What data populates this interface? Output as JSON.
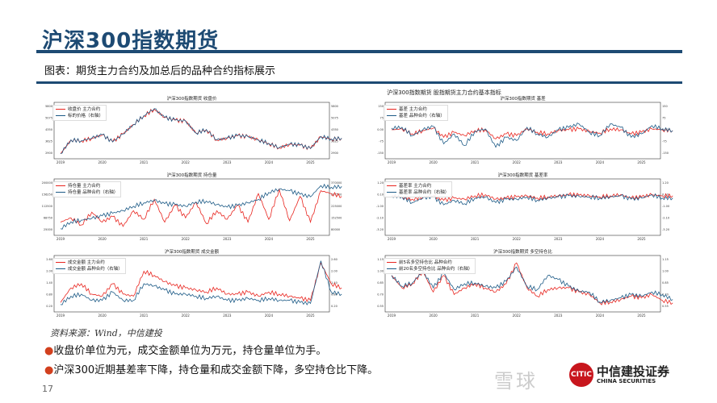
{
  "header": {
    "title": "沪深300指数期货",
    "caption": "图表：期货主力合约及加总后的品种合约指标展示"
  },
  "panel_title": "沪深300指数期货 股指期货主力合约基本指标",
  "footer": {
    "source": "资料来源：Wind，中信建投",
    "bullets": [
      "收盘价单位为元，成交金额单位为万元，持仓量单位为手。",
      "沪深300近期基差率下降，持仓量和成交金额下降，多空持仓比下降。"
    ],
    "page": "17",
    "logo_cn": "中信建投证券",
    "logo_en": "CHINA SECURITIES",
    "logo_seal": "CITIC",
    "watermark": "雪球"
  },
  "colors": {
    "main": "#e8241e",
    "variety": "#1c5a86",
    "brand": "#1d4a73"
  },
  "chart_data": [
    {
      "type": "line",
      "title": "沪深300指数期货 收盘价",
      "x_start": 2019,
      "x_step": 0.25,
      "xlim": [
        2019,
        2025.3
      ],
      "grid": false,
      "legend": "top-left",
      "series": [
        {
          "name": "收盘价 主力合约",
          "axis": "left",
          "values": [
            3000,
            3800,
            3750,
            3900,
            4100,
            3700,
            4150,
            4700,
            5200,
            5600,
            5100,
            4950,
            4900,
            4200,
            4400,
            3800,
            3900,
            4050,
            4000,
            3800,
            3600,
            3350,
            3550,
            3500,
            3300,
            4000,
            3850,
            3900
          ]
        },
        {
          "name": "标的价格（右轴）",
          "axis": "right",
          "values": [
            3010,
            3810,
            3760,
            3910,
            4110,
            3690,
            4160,
            4710,
            5220,
            5620,
            5110,
            4960,
            4910,
            4210,
            4410,
            3810,
            3910,
            4060,
            4010,
            3810,
            3610,
            3360,
            3560,
            3510,
            3310,
            4010,
            3860,
            3910
          ]
        }
      ],
      "ylim_left": [
        2900,
        5800
      ],
      "ylim_right": [
        2900,
        5800
      ]
    },
    {
      "type": "line",
      "title": "沪深300指数期货 基差",
      "x_start": 2019,
      "x_step": 0.25,
      "xlim": [
        2019,
        2025.3
      ],
      "grid": false,
      "legend": "top-left",
      "series": [
        {
          "name": "基差 主力合约",
          "axis": "left",
          "values": [
            5,
            10,
            -20,
            0,
            15,
            -40,
            -10,
            -30,
            0,
            5,
            -50,
            -20,
            -30,
            10,
            -10,
            -20,
            0,
            5,
            10,
            -5,
            -15,
            10,
            5,
            -20,
            -10,
            10,
            5,
            0
          ]
        },
        {
          "name": "基差 品种合约（右轴）",
          "axis": "right",
          "values": [
            15,
            20,
            -30,
            5,
            25,
            -80,
            -20,
            -90,
            -5,
            10,
            -100,
            -40,
            -60,
            20,
            -20,
            -40,
            5,
            20,
            40,
            -10,
            -30,
            40,
            20,
            -40,
            -20,
            30,
            10,
            0
          ]
        }
      ],
      "ylim_left": [
        -150,
        150
      ],
      "ylim_right": [
        -150,
        150
      ]
    },
    {
      "type": "line",
      "title": "沪深300指数期货 持仓量",
      "x_start": 2019,
      "x_step": 0.25,
      "xlim": [
        2019,
        2025.3
      ],
      "grid": false,
      "legend": "top-left",
      "series": [
        {
          "name": "持仓量 主力合约",
          "axis": "left",
          "values": [
            60000,
            75000,
            50000,
            95000,
            60000,
            80000,
            45000,
            100000,
            70000,
            140000,
            60000,
            120000,
            75000,
            130000,
            55000,
            100000,
            70000,
            120000,
            60000,
            160000,
            70000,
            175000,
            65000,
            150000,
            60000,
            170000,
            160000,
            150000
          ]
        },
        {
          "name": "持仓量 品种合约（右轴）",
          "axis": "right",
          "values": [
            100000,
            140000,
            150000,
            160000,
            175000,
            190000,
            205000,
            230000,
            250000,
            265000,
            245000,
            240000,
            230000,
            255000,
            260000,
            240000,
            225000,
            235000,
            250000,
            270000,
            310000,
            330000,
            320000,
            300000,
            285000,
            350000,
            340000,
            345000
          ]
        }
      ],
      "ylim_left": [
        25000,
        200000
      ],
      "ylim_right": [
        80000,
        370000
      ]
    },
    {
      "type": "line",
      "title": "沪深300指数期货 基差率",
      "x_start": 2019,
      "x_step": 0.25,
      "xlim": [
        2019,
        2025.3
      ],
      "grid": false,
      "legend": "top-left",
      "series": [
        {
          "name": "基差率 主力合约",
          "axis": "left",
          "values": [
            0,
            -0.1,
            -0.3,
            -0.1,
            0,
            -0.4,
            -0.2,
            -0.3,
            0,
            0.1,
            -0.3,
            -0.2,
            -0.1,
            0,
            -0.2,
            -0.1,
            0,
            0.1,
            0.05,
            0,
            -0.1,
            0,
            0.1,
            -0.2,
            -0.1,
            0.1,
            0,
            0
          ]
        },
        {
          "name": "基差率 品种合约（右轴）",
          "axis": "right",
          "values": [
            0,
            -0.1,
            -0.6,
            -0.2,
            -0.1,
            -0.8,
            -0.4,
            -0.7,
            -0.2,
            -0.1,
            -0.6,
            -0.3,
            -0.3,
            -0.1,
            -0.4,
            -0.2,
            -0.1,
            0,
            -0.05,
            -0.1,
            -0.2,
            -0.1,
            0,
            -0.3,
            -0.2,
            0.1,
            -0.2,
            -0.2
          ]
        }
      ],
      "ylim_left": [
        -3.2,
        1.2
      ],
      "ylim_right": [
        -3.2,
        1.2
      ]
    },
    {
      "type": "line",
      "title": "沪深300指数期货 成交金额",
      "x_start": 2019,
      "x_step": 0.25,
      "xlim": [
        2019,
        2025.3
      ],
      "grid": false,
      "legend": "top-left",
      "series": [
        {
          "name": "成交金额 主力合约",
          "axis": "left",
          "values": [
            0.5,
            1.2,
            1.4,
            0.9,
            0.8,
            1.4,
            0.9,
            0.8,
            2.0,
            1.8,
            1.5,
            1.3,
            1.2,
            1.1,
            1.0,
            1.2,
            0.9,
            0.9,
            1.0,
            0.8,
            1.0,
            0.9,
            0.8,
            0.7,
            0.6,
            2.4,
            1.4,
            1.2
          ]
        },
        {
          "name": "成交金额 品种合约（右轴）",
          "axis": "right",
          "values": [
            0.4,
            0.8,
            0.9,
            0.6,
            0.6,
            1.0,
            0.6,
            0.6,
            1.4,
            1.3,
            1.1,
            0.9,
            0.9,
            0.8,
            0.7,
            0.8,
            0.6,
            0.6,
            0.7,
            0.6,
            0.7,
            0.6,
            0.6,
            0.5,
            0.45,
            2.5,
            1.0,
            0.9
          ]
        }
      ],
      "ylim_left": [
        0.2,
        2.6
      ],
      "ylim_right": [
        0.2,
        2.6
      ]
    },
    {
      "type": "line",
      "title": "沪深300指数期货 多空持仓比",
      "x_start": 2019,
      "x_step": 0.25,
      "xlim": [
        2019,
        2025.3
      ],
      "grid": false,
      "legend": "top-left",
      "series": [
        {
          "name": "前5名多空持仓比 品种合约",
          "axis": "left",
          "values": [
            0.95,
            0.8,
            0.85,
            1.0,
            0.75,
            0.95,
            0.72,
            0.8,
            0.85,
            0.8,
            0.75,
            0.85,
            1.1,
            0.8,
            0.7,
            0.78,
            0.8,
            0.8,
            0.75,
            0.72,
            0.62,
            0.63,
            0.66,
            0.7,
            0.68,
            0.72,
            0.65,
            0.62
          ]
        },
        {
          "name": "前20名多空持仓比 品种合约（右轴）",
          "axis": "right",
          "values": [
            0.95,
            0.82,
            0.86,
            1.0,
            0.8,
            0.98,
            0.78,
            0.85,
            0.86,
            0.82,
            0.8,
            0.88,
            1.05,
            0.82,
            0.78,
            0.95,
            0.9,
            0.82,
            0.76,
            0.75,
            0.63,
            0.65,
            0.68,
            0.72,
            0.7,
            0.75,
            0.72,
            0.66
          ]
        }
      ],
      "ylim_left": [
        0.55,
        1.15
      ],
      "ylim_right": [
        0.55,
        1.15
      ]
    }
  ],
  "x_tick_labels": [
    "2019",
    "2020",
    "2021",
    "2022",
    "2023",
    "2024",
    "2025"
  ]
}
